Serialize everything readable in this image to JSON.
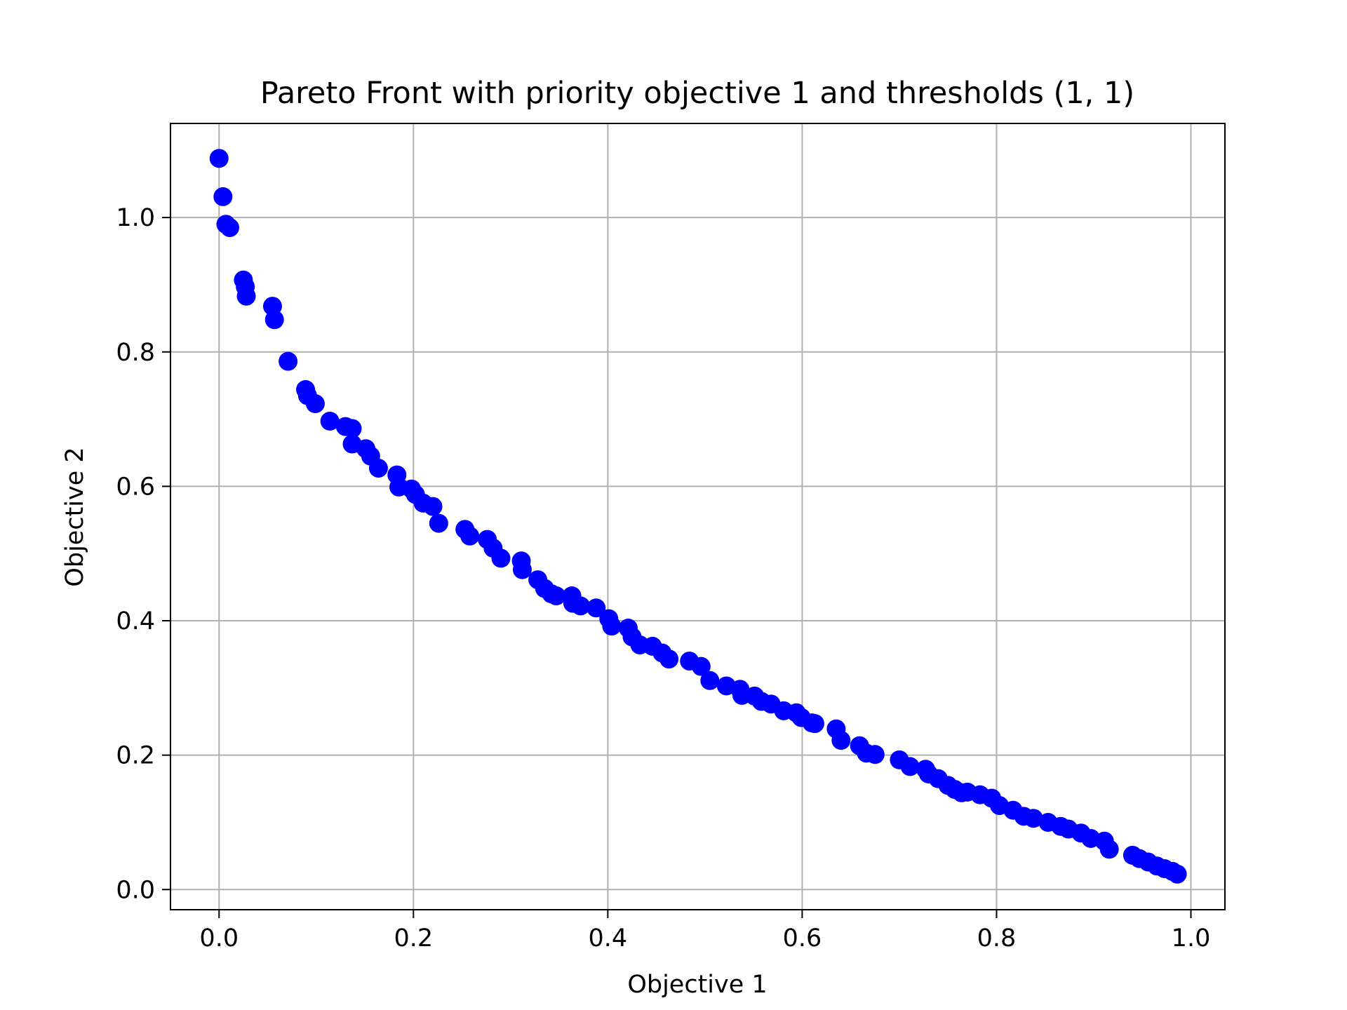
{
  "chart_data": {
    "type": "scatter",
    "title": "Pareto Front with priority objective 1 and thresholds (1, 1)",
    "xlabel": "Objective 1",
    "ylabel": "Objective 2",
    "xlim": [
      -0.05,
      1.035
    ],
    "ylim": [
      -0.03,
      1.14
    ],
    "x_ticks": [
      0.0,
      0.2,
      0.4,
      0.6,
      0.8,
      1.0
    ],
    "x_tick_labels": [
      "0.0",
      "0.2",
      "0.4",
      "0.6",
      "0.8",
      "1.0"
    ],
    "y_ticks": [
      0.0,
      0.2,
      0.4,
      0.6,
      0.8,
      1.0
    ],
    "y_tick_labels": [
      "0.0",
      "0.2",
      "0.4",
      "0.6",
      "0.8",
      "1.0"
    ],
    "grid": true,
    "legend": "none",
    "marker_color": "#0000ff",
    "series": [
      {
        "x": [
          0.0,
          0.004,
          0.007,
          0.011,
          0.025,
          0.027,
          0.028,
          0.055,
          0.057,
          0.071,
          0.089,
          0.091,
          0.099,
          0.114,
          0.13,
          0.137,
          0.137,
          0.151,
          0.156,
          0.164,
          0.183,
          0.185,
          0.198,
          0.202,
          0.21,
          0.22,
          0.226,
          0.253,
          0.258,
          0.276,
          0.282,
          0.29,
          0.311,
          0.312,
          0.328,
          0.335,
          0.342,
          0.347,
          0.363,
          0.364,
          0.372,
          0.388,
          0.401,
          0.404,
          0.421,
          0.425,
          0.433,
          0.446,
          0.456,
          0.463,
          0.484,
          0.496,
          0.505,
          0.522,
          0.536,
          0.538,
          0.551,
          0.558,
          0.568,
          0.581,
          0.594,
          0.599,
          0.61,
          0.613,
          0.635,
          0.64,
          0.659,
          0.666,
          0.675,
          0.7,
          0.711,
          0.727,
          0.73,
          0.74,
          0.75,
          0.757,
          0.764,
          0.77,
          0.783,
          0.795,
          0.803,
          0.817,
          0.828,
          0.838,
          0.853,
          0.866,
          0.874,
          0.887,
          0.897,
          0.911,
          0.916,
          0.94,
          0.947,
          0.956,
          0.965,
          0.973,
          0.981,
          0.986
        ],
        "y": [
          1.088,
          1.031,
          0.99,
          0.985,
          0.907,
          0.897,
          0.883,
          0.868,
          0.848,
          0.786,
          0.744,
          0.735,
          0.723,
          0.697,
          0.689,
          0.686,
          0.663,
          0.656,
          0.645,
          0.627,
          0.617,
          0.599,
          0.596,
          0.588,
          0.575,
          0.57,
          0.545,
          0.536,
          0.526,
          0.521,
          0.508,
          0.493,
          0.489,
          0.476,
          0.461,
          0.448,
          0.44,
          0.437,
          0.437,
          0.426,
          0.422,
          0.419,
          0.403,
          0.392,
          0.389,
          0.376,
          0.364,
          0.362,
          0.352,
          0.343,
          0.34,
          0.332,
          0.311,
          0.303,
          0.298,
          0.289,
          0.288,
          0.28,
          0.276,
          0.266,
          0.263,
          0.256,
          0.248,
          0.247,
          0.239,
          0.222,
          0.214,
          0.203,
          0.201,
          0.193,
          0.183,
          0.179,
          0.172,
          0.165,
          0.155,
          0.149,
          0.144,
          0.145,
          0.141,
          0.136,
          0.125,
          0.118,
          0.109,
          0.106,
          0.1,
          0.094,
          0.09,
          0.084,
          0.076,
          0.072,
          0.06,
          0.051,
          0.046,
          0.041,
          0.035,
          0.031,
          0.027,
          0.023
        ]
      }
    ]
  }
}
